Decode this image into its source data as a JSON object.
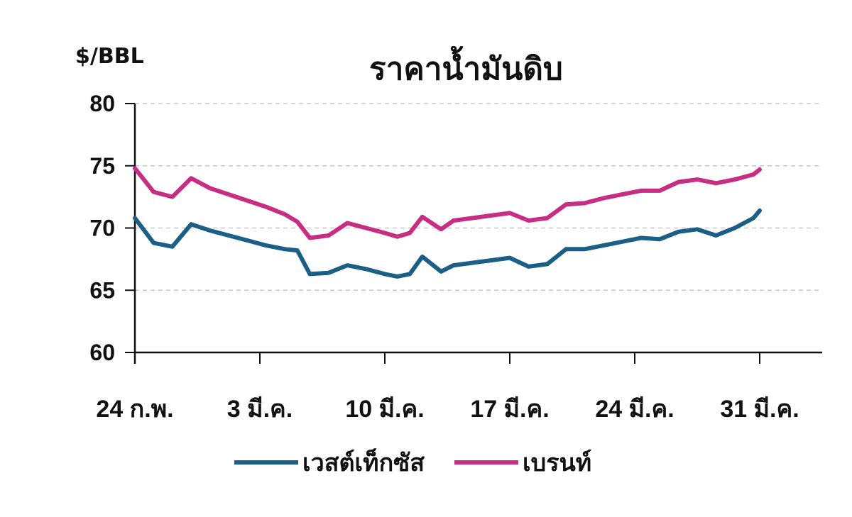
{
  "chart_data": {
    "type": "line",
    "title": "ราคาน้ำมันดิบ",
    "ylabel": "$/BBL",
    "xlabel": "",
    "ylim": [
      60,
      80
    ],
    "yticks": [
      60,
      65,
      70,
      75,
      80
    ],
    "xlim": [
      0,
      55
    ],
    "xticks": [
      {
        "x": 0,
        "label": "24 ก.พ."
      },
      {
        "x": 10,
        "label": "3 มี.ค."
      },
      {
        "x": 20,
        "label": "10 มี.ค."
      },
      {
        "x": 30,
        "label": "17 มี.ค."
      },
      {
        "x": 40,
        "label": "24 มี.ค."
      },
      {
        "x": 50,
        "label": "31 มี.ค."
      }
    ],
    "grid": true,
    "legend_position": "bottom",
    "series": [
      {
        "name": "เวสต์เท็กซัส",
        "color": "#1b5e86",
        "points": [
          [
            0,
            70.8
          ],
          [
            1.5,
            68.8
          ],
          [
            3,
            68.5
          ],
          [
            4.5,
            70.3
          ],
          [
            6,
            69.8
          ],
          [
            7.5,
            69.4
          ],
          [
            9,
            69.0
          ],
          [
            10.5,
            68.6
          ],
          [
            12,
            68.3
          ],
          [
            13,
            68.2
          ],
          [
            14,
            66.3
          ],
          [
            15.5,
            66.4
          ],
          [
            17,
            67.0
          ],
          [
            18.5,
            66.7
          ],
          [
            20,
            66.3
          ],
          [
            21,
            66.1
          ],
          [
            22,
            66.3
          ],
          [
            23,
            67.7
          ],
          [
            24.5,
            66.5
          ],
          [
            25.5,
            67.0
          ],
          [
            27,
            67.2
          ],
          [
            28.5,
            67.4
          ],
          [
            30,
            67.6
          ],
          [
            31.5,
            66.9
          ],
          [
            33,
            67.1
          ],
          [
            34.5,
            68.3
          ],
          [
            36,
            68.3
          ],
          [
            37.5,
            68.6
          ],
          [
            39,
            68.9
          ],
          [
            40.5,
            69.2
          ],
          [
            42,
            69.1
          ],
          [
            43.5,
            69.7
          ],
          [
            45,
            69.9
          ],
          [
            46.5,
            69.4
          ],
          [
            48,
            70.0
          ],
          [
            49.5,
            70.8
          ],
          [
            50,
            71.4
          ]
        ]
      },
      {
        "name": "เบรนท์",
        "color": "#c62d83",
        "points": [
          [
            0,
            74.8
          ],
          [
            1.5,
            72.9
          ],
          [
            3,
            72.5
          ],
          [
            4.5,
            74.0
          ],
          [
            6,
            73.2
          ],
          [
            7.5,
            72.7
          ],
          [
            9,
            72.2
          ],
          [
            10.5,
            71.7
          ],
          [
            12,
            71.1
          ],
          [
            13,
            70.5
          ],
          [
            14,
            69.2
          ],
          [
            15.5,
            69.4
          ],
          [
            17,
            70.4
          ],
          [
            18.5,
            70.0
          ],
          [
            20,
            69.6
          ],
          [
            21,
            69.3
          ],
          [
            22,
            69.6
          ],
          [
            23,
            70.9
          ],
          [
            24.5,
            69.9
          ],
          [
            25.5,
            70.6
          ],
          [
            27,
            70.8
          ],
          [
            28.5,
            71.0
          ],
          [
            30,
            71.2
          ],
          [
            31.5,
            70.6
          ],
          [
            33,
            70.8
          ],
          [
            34.5,
            71.9
          ],
          [
            36,
            72.0
          ],
          [
            37.5,
            72.4
          ],
          [
            39,
            72.7
          ],
          [
            40.5,
            73.0
          ],
          [
            42,
            73.0
          ],
          [
            43.5,
            73.7
          ],
          [
            45,
            73.9
          ],
          [
            46.5,
            73.6
          ],
          [
            48,
            73.9
          ],
          [
            49.5,
            74.3
          ],
          [
            50,
            74.7
          ]
        ]
      }
    ]
  }
}
